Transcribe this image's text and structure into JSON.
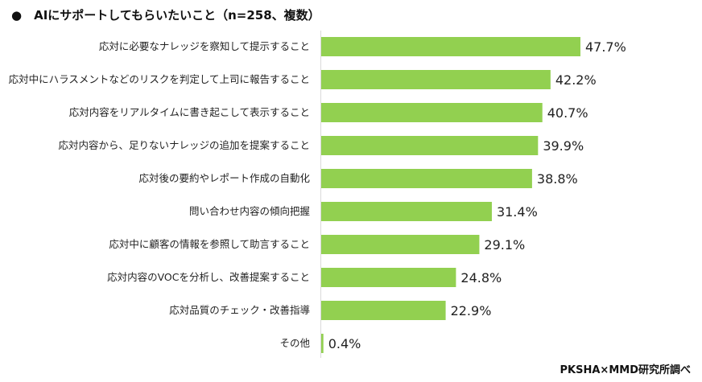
{
  "title": "●　AIにサポートしてもらいたいこと（n=258、複数）",
  "source": "PKSHA×MMD研究所調べ",
  "chart_data": {
    "type": "bar",
    "orientation": "horizontal",
    "title": "AIにサポートしてもらいたいこと（n=258、複数）",
    "categories": [
      "応対に必要なナレッジを察知して提示すること",
      "応対中にハラスメントなどのリスクを判定して上司に報告すること",
      "応対内容をリアルタイムに書き起こして表示すること",
      "応対内容から、足りないナレッジの追加を提案すること",
      "応対後の要約やレポート作成の自動化",
      "問い合わせ内容の傾向把握",
      "応対中に顧客の情報を参照して助言すること",
      "応対内容のVOCを分析し、改善提案すること",
      "応対品質のチェック・改善指導",
      "その他"
    ],
    "values": [
      47.7,
      42.2,
      40.7,
      39.9,
      38.8,
      31.4,
      29.1,
      24.8,
      22.9,
      0.4
    ],
    "labels": [
      "47.7%",
      "42.2%",
      "40.7%",
      "39.9%",
      "38.8%",
      "31.4%",
      "29.1%",
      "24.8%",
      "22.9%",
      "0.4%"
    ],
    "unit": "%",
    "bar_color": "#92d050",
    "grid": false,
    "legend": "none"
  }
}
